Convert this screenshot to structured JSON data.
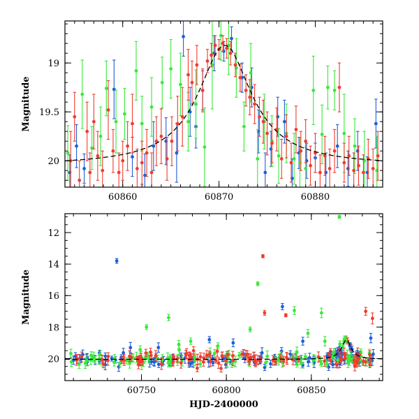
{
  "chart_data": [
    {
      "type": "scatter",
      "panel": "top",
      "title": "",
      "xlabel": "",
      "ylabel": "Magnitude",
      "xlim": [
        60854,
        60887
      ],
      "ylim": [
        20.27,
        18.57
      ],
      "y_inverted": true,
      "xticks_major": [
        60860,
        60870,
        60880
      ],
      "xticks_minor_step": 1,
      "yticks_major": [
        19,
        19.5,
        20
      ],
      "yticks_minor_step": 0.1,
      "grid": false,
      "colors": {
        "blue": "#1f5fd6",
        "green": "#3be83b",
        "red": "#f03c2e",
        "model": "#000000"
      },
      "model_curve": {
        "style": "dashed",
        "t0": 60870.6,
        "baseline": 20.05,
        "peak": 18.82,
        "width": 6.8,
        "x": [
          60854,
          60856,
          60858,
          60860,
          60862,
          60864,
          60866,
          60867,
          60868,
          60869,
          60870,
          60870.6,
          60871,
          60872,
          60873,
          60874,
          60875,
          60877,
          60879,
          60881,
          60883,
          60885,
          60887
        ],
        "y": [
          20.0,
          19.98,
          19.94,
          19.87,
          19.76,
          19.58,
          19.33,
          19.16,
          18.99,
          18.88,
          18.83,
          18.82,
          18.83,
          18.89,
          19.0,
          19.17,
          19.33,
          19.57,
          19.74,
          19.85,
          19.92,
          19.97,
          20.0
        ]
      },
      "series": [
        {
          "color": "blue",
          "x": [
            60854.5,
            60855.2,
            60856.0,
            60859.1,
            60861.0,
            60862.3,
            60863.2,
            60864.5,
            60865.6,
            60866.3,
            60867.0,
            60867.6,
            60868.3,
            60869.5,
            60870.5,
            60871.3,
            60872.4,
            60873.4,
            60874.1,
            60874.8,
            60875.4,
            60876.1,
            60876.8,
            60877.6,
            60878.3,
            60879.1,
            60880.0,
            60881.1,
            60882.3,
            60883.4,
            60884.4,
            60885.4,
            60886.3
          ],
          "y": [
            20.12,
            19.85,
            20.08,
            19.27,
            19.96,
            20.15,
            19.85,
            19.8,
            19.92,
            18.73,
            19.5,
            19.65,
            19.28,
            18.9,
            18.88,
            18.75,
            19.15,
            19.25,
            19.7,
            20.12,
            19.88,
            19.55,
            19.6,
            20.18,
            19.92,
            20.0,
            19.97,
            20.12,
            19.85,
            20.08,
            19.9,
            20.12,
            19.62
          ],
          "err": [
            0.18,
            0.22,
            0.15,
            0.3,
            0.2,
            0.22,
            0.25,
            0.24,
            0.3,
            0.2,
            0.25,
            0.22,
            0.2,
            0.18,
            0.1,
            0.12,
            0.15,
            0.2,
            0.22,
            0.2,
            0.18,
            0.2,
            0.22,
            0.2,
            0.16,
            0.18,
            0.15,
            0.2,
            0.22,
            0.18,
            0.2,
            0.16,
            0.25
          ]
        },
        {
          "color": "green",
          "x": [
            60854.3,
            60855.8,
            60856.8,
            60857.7,
            60858.3,
            60859.3,
            60860.2,
            60861.4,
            60862.0,
            60863.0,
            60864.1,
            60865.0,
            60866.0,
            60866.8,
            60867.6,
            60868.5,
            60869.3,
            60870.2,
            60871.0,
            60871.8,
            60872.6,
            60873.3,
            60874.0,
            60874.7,
            60875.5,
            60876.2,
            60877.0,
            60877.8,
            60878.4,
            60879.0,
            60879.8,
            60880.7,
            60881.3,
            60882.0,
            60883.0,
            60884.1,
            60885.1,
            60886.4
          ],
          "y": [
            19.92,
            19.32,
            19.87,
            19.75,
            19.26,
            19.6,
            19.52,
            19.08,
            19.62,
            19.45,
            19.2,
            19.06,
            19.22,
            19.6,
            19.42,
            19.86,
            19.02,
            18.72,
            18.82,
            19.05,
            19.65,
            19.1,
            19.98,
            19.6,
            19.8,
            19.95,
            19.72,
            19.98,
            20.02,
            20.08,
            19.28,
            19.73,
            19.25,
            19.28,
            19.72,
            19.85,
            20.0,
            20.1
          ],
          "err": [
            0.28,
            0.35,
            0.22,
            0.3,
            0.28,
            0.32,
            0.26,
            0.3,
            0.28,
            0.3,
            0.26,
            0.3,
            0.32,
            0.3,
            0.35,
            0.4,
            0.45,
            0.25,
            0.3,
            0.3,
            0.25,
            0.3,
            0.3,
            0.28,
            0.26,
            0.28,
            0.3,
            0.26,
            0.25,
            0.22,
            0.35,
            0.3,
            0.22,
            0.2,
            0.4,
            0.28,
            0.3,
            0.35
          ]
        },
        {
          "color": "red",
          "x": [
            60854.6,
            60855.0,
            60855.5,
            60856.3,
            60856.6,
            60857.0,
            60857.4,
            60857.9,
            60858.5,
            60859.0,
            60859.6,
            60860.0,
            60860.5,
            60861.0,
            60861.5,
            60862.0,
            60862.5,
            60863.0,
            60863.5,
            60864.0,
            60864.6,
            60865.1,
            60865.7,
            60866.2,
            60866.8,
            60867.2,
            60867.7,
            60868.3,
            60868.8,
            60869.2,
            60869.6,
            60870.0,
            60870.4,
            60870.8,
            60871.2,
            60871.7,
            60872.2,
            60872.8,
            60873.2,
            60873.7,
            60874.2,
            60874.6,
            60875.0,
            60875.5,
            60876.0,
            60876.5,
            60877.0,
            60877.5,
            60878.0,
            60878.5,
            60879.0,
            60879.5,
            60880.0,
            60880.5,
            60881.0,
            60881.5,
            60882.0,
            60882.5,
            60883.0,
            60883.5,
            60884.0,
            60884.5,
            60885.0,
            60885.5,
            60886.0,
            60886.5
          ],
          "y": [
            20.0,
            19.55,
            20.2,
            19.7,
            20.12,
            19.6,
            19.95,
            20.1,
            19.48,
            19.9,
            20.12,
            20.0,
            19.85,
            19.62,
            20.08,
            20.02,
            19.92,
            20.12,
            19.8,
            19.75,
            19.98,
            19.8,
            19.62,
            19.55,
            19.12,
            19.2,
            19.02,
            19.28,
            18.98,
            18.92,
            18.82,
            18.86,
            18.8,
            18.85,
            18.9,
            19.02,
            19.15,
            19.28,
            19.35,
            19.42,
            19.55,
            19.6,
            19.72,
            19.82,
            19.68,
            19.98,
            19.75,
            20.02,
            19.68,
            19.9,
            19.8,
            20.05,
            19.92,
            20.12,
            19.95,
            20.08,
            19.9,
            19.25,
            20.02,
            19.95,
            20.1,
            20.05,
            20.12,
            19.98,
            20.08,
            19.95
          ],
          "err": [
            0.3,
            0.25,
            0.2,
            0.3,
            0.2,
            0.28,
            0.25,
            0.2,
            0.3,
            0.22,
            0.2,
            0.2,
            0.25,
            0.3,
            0.2,
            0.22,
            0.24,
            0.2,
            0.25,
            0.28,
            0.22,
            0.25,
            0.28,
            0.3,
            0.26,
            0.22,
            0.2,
            0.22,
            0.12,
            0.12,
            0.1,
            0.1,
            0.08,
            0.1,
            0.12,
            0.12,
            0.14,
            0.16,
            0.18,
            0.2,
            0.2,
            0.22,
            0.22,
            0.2,
            0.22,
            0.2,
            0.22,
            0.2,
            0.24,
            0.2,
            0.22,
            0.2,
            0.2,
            0.18,
            0.2,
            0.2,
            0.22,
            0.25,
            0.2,
            0.2,
            0.18,
            0.2,
            0.18,
            0.2,
            0.2,
            0.25
          ]
        }
      ]
    },
    {
      "type": "scatter",
      "panel": "bottom",
      "title": "",
      "xlabel": "HJD-2400000",
      "ylabel": "Magnitude",
      "xlim": [
        60705,
        60892
      ],
      "ylim": [
        21.4,
        10.8
      ],
      "y_inverted": true,
      "xticks_major": [
        60750,
        60800,
        60850
      ],
      "xticks_minor_step": 10,
      "yticks_major": [
        12,
        14,
        16,
        18,
        20
      ],
      "yticks_minor_step": 0.5,
      "grid": false,
      "colors": {
        "blue": "#1f5fd6",
        "green": "#3be83b",
        "red": "#f03c2e",
        "model": "#000000"
      },
      "model_curve": {
        "style": "dashed",
        "t0": 60870.6,
        "baseline": 20.05,
        "peak": 18.82,
        "width": 6.8
      },
      "outliers": [
        {
          "color": "green",
          "x": 60866.5,
          "y": 11.0,
          "err": 0.1
        },
        {
          "color": "blue",
          "x": 60735.5,
          "y": 13.8,
          "err": 0.15
        },
        {
          "color": "red",
          "x": 60821.5,
          "y": 13.5,
          "err": 0.1
        },
        {
          "color": "green",
          "x": 60818.5,
          "y": 15.25,
          "err": 0.12
        },
        {
          "color": "red",
          "x": 60822.5,
          "y": 17.1,
          "err": 0.15
        },
        {
          "color": "blue",
          "x": 60833.0,
          "y": 16.7,
          "err": 0.2
        },
        {
          "color": "green",
          "x": 60840.0,
          "y": 16.95,
          "err": 0.25
        },
        {
          "color": "red",
          "x": 60835.0,
          "y": 17.25,
          "err": 0.1
        },
        {
          "color": "green",
          "x": 60753.0,
          "y": 18.0,
          "err": 0.15
        },
        {
          "color": "green",
          "x": 60766.0,
          "y": 17.4,
          "err": 0.2
        },
        {
          "color": "green",
          "x": 60814.0,
          "y": 18.15,
          "err": 0.15
        },
        {
          "color": "green",
          "x": 60856.0,
          "y": 17.1,
          "err": 0.3
        },
        {
          "color": "green",
          "x": 60848.0,
          "y": 18.4,
          "err": 0.25
        },
        {
          "color": "red",
          "x": 60882.0,
          "y": 17.0,
          "err": 0.25
        },
        {
          "color": "red",
          "x": 60886.0,
          "y": 17.45,
          "err": 0.35
        },
        {
          "color": "blue",
          "x": 60885.0,
          "y": 18.7,
          "err": 0.3
        },
        {
          "color": "green",
          "x": 60858.0,
          "y": 18.9,
          "err": 0.3
        },
        {
          "color": "green",
          "x": 60779.0,
          "y": 18.9,
          "err": 0.2
        },
        {
          "color": "blue",
          "x": 60804.0,
          "y": 19.0,
          "err": 0.25
        },
        {
          "color": "blue",
          "x": 60760.0,
          "y": 19.3,
          "err": 0.3
        },
        {
          "color": "green",
          "x": 60772.0,
          "y": 19.1,
          "err": 0.25
        },
        {
          "color": "blue",
          "x": 60790.0,
          "y": 18.8,
          "err": 0.2
        },
        {
          "color": "green",
          "x": 60795.0,
          "y": 19.2,
          "err": 0.2
        },
        {
          "color": "blue",
          "x": 60845.0,
          "y": 18.9,
          "err": 0.25
        }
      ],
      "baseline_band": {
        "x_start": 60708,
        "x_end": 60887,
        "mag": 20.05,
        "scatter": 0.22,
        "points_per_color": 95
      }
    }
  ]
}
